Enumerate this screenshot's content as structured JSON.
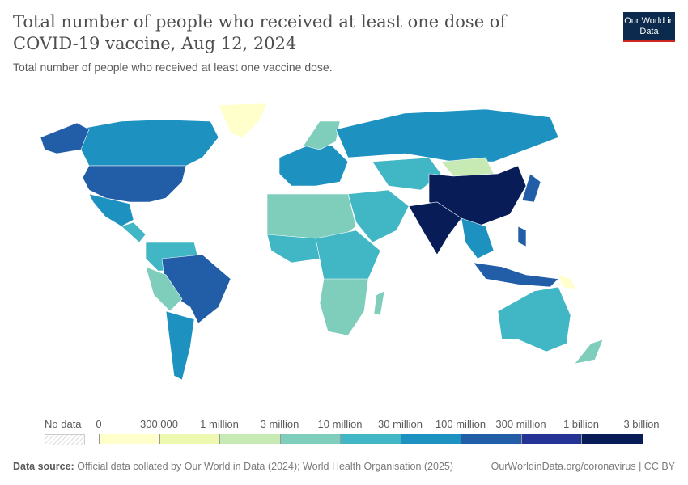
{
  "header": {
    "title": "Total number of people who received at least one dose of COVID-19 vaccine, Aug 12, 2024",
    "subtitle": "Total number of people who received at least one vaccine dose.",
    "logo": "Our World in Data"
  },
  "legend": {
    "no_data_label": "No data",
    "ticks": [
      "0",
      "300,000",
      "1 million",
      "3 million",
      "10 million",
      "30 million",
      "100 million",
      "300 million",
      "1 billion",
      "3 billion"
    ],
    "colors": [
      "#ffffcc",
      "#edf8b1",
      "#c7e9b4",
      "#7fcdbb",
      "#41b6c4",
      "#1d91c0",
      "#225ea8",
      "#253494",
      "#081d58"
    ]
  },
  "footer": {
    "source_label": "Data source:",
    "source_text": "Official data collated by Our World in Data (2024); World Health Organisation (2025)",
    "link": "OurWorldinData.org/coronavirus | CC BY"
  }
}
